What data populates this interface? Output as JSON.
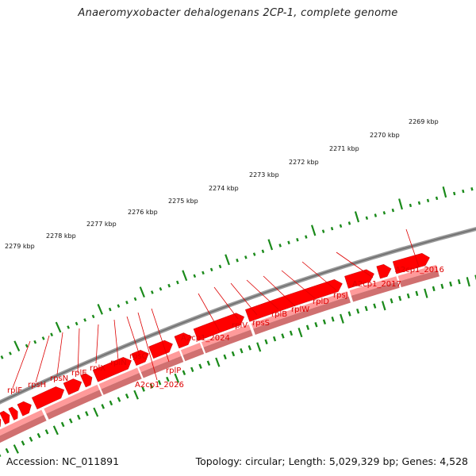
{
  "title": "Anaeromyxobacter dehalogenans 2CP-1, complete genome",
  "footer": {
    "accession": "Accession: NC_011891",
    "summary": "Topology: circular; Length: 5,029,329 bp; Genes: 4,528"
  },
  "colors": {
    "backbone": "#808080",
    "gene_forward": "#ff0000",
    "gene_track_light": "#ff9a9a",
    "gene_track_dark": "#d07070",
    "tick": "#1a8a1a",
    "label": "#dd0000"
  },
  "scale_ticks": [
    "2269 kbp",
    "2270 kbp",
    "2271 kbp",
    "2272 kbp",
    "2273 kbp",
    "2274 kbp",
    "2275 kbp",
    "2276 kbp",
    "2277 kbp",
    "2278 kbp",
    "2279 kbp"
  ],
  "gene_labels": [
    "A2cp1_2016",
    "A2cp1_2017",
    "rpsJ",
    "rplD",
    "rplW",
    "rplB",
    "rpsS",
    "rplV",
    "A2cp1_2024",
    "rplP",
    "A2cp1_2026",
    "rpsQ",
    "rplN",
    "rplX",
    "rplE",
    "rpsN",
    "rpsH",
    "rplF"
  ]
}
